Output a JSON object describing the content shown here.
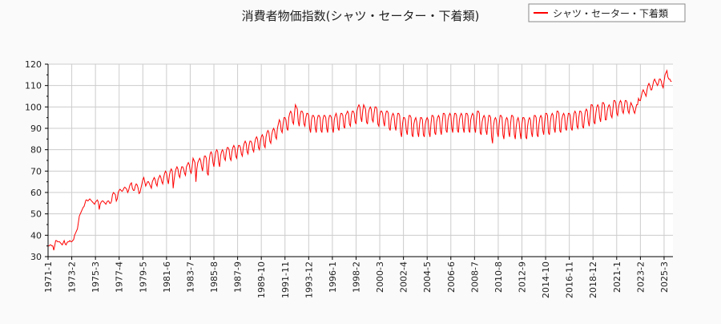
{
  "chart_data": {
    "type": "line",
    "title": "消費者物価指数(シャツ・セーター・下着類)",
    "xlabel": "",
    "ylabel": "",
    "x_range": [
      "1971-1",
      "2025-11"
    ],
    "ylim": [
      30,
      120
    ],
    "yticks": [
      30,
      40,
      50,
      60,
      70,
      80,
      90,
      100,
      110,
      120
    ],
    "xticks": [
      "1971-1",
      "1973-2",
      "1975-3",
      "1977-4",
      "1979-5",
      "1981-6",
      "1983-7",
      "1985-8",
      "1987-9",
      "1989-10",
      "1991-11",
      "1993-12",
      "1996-1",
      "1998-2",
      "2000-3",
      "2002-4",
      "2004-5",
      "2006-6",
      "2008-7",
      "2010-8",
      "2012-9",
      "2014-10",
      "2016-11",
      "2018-12",
      "2021-1",
      "2023-2",
      "2025-3"
    ],
    "grid": true,
    "legend_placement": "top-right",
    "series": [
      {
        "name": "シャツ・セーター・下着類",
        "color": "#ff0000",
        "values": [
          35,
          35,
          35.5,
          35.5,
          35,
          35,
          33,
          35,
          37.5,
          37.5,
          37,
          37,
          37,
          36.5,
          36,
          35.5,
          36.5,
          37.5,
          36,
          35.5,
          36.5,
          37,
          37,
          37.5,
          37,
          37,
          37.5,
          38,
          40,
          41,
          42,
          43,
          46,
          49,
          50,
          51,
          52,
          53,
          53.5,
          55,
          56.5,
          56.5,
          56,
          56.5,
          57,
          56.5,
          56,
          55.5,
          55,
          54.5,
          55.5,
          56,
          56.5,
          55.5,
          52,
          54.5,
          55.5,
          56,
          56,
          55.5,
          55,
          54.5,
          55.5,
          56,
          56,
          55,
          55,
          56,
          59,
          60,
          59.5,
          59,
          56,
          57,
          60,
          61,
          61.5,
          61,
          60.5,
          61,
          62,
          62.5,
          62,
          61.5,
          60,
          61,
          63,
          64,
          64.5,
          62,
          61,
          61,
          63,
          64,
          63.5,
          62,
          59.5,
          60,
          62,
          64,
          66,
          67,
          65,
          63,
          64,
          65,
          65,
          64,
          63,
          62,
          65,
          66,
          67,
          66,
          64,
          63,
          66,
          67,
          68,
          67,
          65,
          64,
          67,
          69,
          70,
          69,
          66,
          64,
          68,
          70,
          71,
          70,
          62,
          66,
          69,
          71,
          72,
          71,
          68,
          67,
          70,
          72,
          72,
          71,
          69,
          68,
          72,
          73,
          74,
          73,
          70,
          69,
          72,
          76,
          75,
          74,
          65,
          71,
          74,
          75,
          76,
          75,
          72,
          70,
          74,
          77,
          77,
          76,
          69,
          68,
          75,
          78,
          79,
          78,
          74,
          72,
          76,
          79,
          80,
          79,
          74,
          72,
          77,
          79,
          80,
          79,
          76,
          75,
          79,
          81,
          81,
          80,
          76,
          75,
          79,
          81,
          82,
          81,
          77,
          76,
          80,
          82,
          82,
          81,
          78,
          77,
          81,
          83,
          84,
          83,
          79,
          78,
          82,
          84,
          84,
          83,
          80,
          79,
          83,
          85,
          86,
          85,
          81,
          80,
          84,
          86,
          87,
          86,
          82,
          81,
          86,
          88,
          89,
          88,
          84,
          83,
          87,
          89,
          90,
          89,
          86,
          85,
          90,
          92,
          94,
          93,
          89,
          88,
          92,
          95,
          95,
          94,
          90,
          89,
          95,
          97,
          98,
          97,
          93,
          92,
          97,
          101,
          100,
          99,
          93,
          91,
          96,
          98,
          98,
          97,
          92,
          91,
          95,
          97,
          97,
          96,
          90,
          88,
          94,
          96,
          96,
          95,
          90,
          88,
          94,
          96,
          96,
          95,
          89,
          88,
          94,
          96,
          96,
          95,
          90,
          88,
          94,
          96,
          96,
          95,
          90,
          88,
          94,
          96,
          97,
          95,
          90,
          89,
          95,
          97,
          97,
          96,
          91,
          90,
          96,
          97,
          98,
          97,
          92,
          91,
          96,
          98,
          98,
          97,
          93,
          92,
          98,
          100,
          101,
          100,
          95,
          93,
          98,
          101,
          100,
          99,
          93,
          92,
          97,
          99,
          100,
          99,
          94,
          93,
          97,
          100,
          100,
          99,
          92,
          91,
          96,
          98,
          98,
          97,
          93,
          91,
          96,
          98,
          98,
          97,
          90,
          89,
          94,
          96,
          97,
          96,
          91,
          89,
          94,
          97,
          97,
          96,
          88,
          86,
          92,
          95,
          95,
          94,
          89,
          87,
          93,
          96,
          96,
          95,
          87,
          86,
          92,
          94,
          95,
          93,
          88,
          86,
          92,
          95,
          95,
          94,
          87,
          86,
          92,
          94,
          95,
          94,
          88,
          86,
          92,
          96,
          96,
          95,
          88,
          87,
          93,
          95,
          96,
          95,
          89,
          87,
          93,
          97,
          97,
          96,
          89,
          88,
          94,
          96,
          97,
          96,
          90,
          88,
          94,
          97,
          97,
          96,
          89,
          88,
          94,
          96,
          97,
          96,
          90,
          88,
          94,
          97,
          97,
          96,
          89,
          88,
          94,
          96,
          97,
          96,
          90,
          88,
          94,
          98,
          98,
          97,
          88,
          87,
          93,
          95,
          96,
          95,
          89,
          87,
          92,
          96,
          96,
          95,
          86,
          83,
          91,
          94,
          95,
          94,
          88,
          86,
          92,
          96,
          96,
          95,
          87,
          85,
          91,
          94,
          95,
          94,
          88,
          86,
          92,
          96,
          96,
          95,
          87,
          85,
          91,
          94,
          95,
          93,
          88,
          85,
          92,
          95,
          95,
          94,
          86,
          85,
          91,
          94,
          95,
          94,
          88,
          86,
          92,
          96,
          96,
          95,
          87,
          86,
          92,
          95,
          96,
          95,
          89,
          87,
          93,
          97,
          97,
          96,
          88,
          87,
          93,
          96,
          97,
          96,
          90,
          88,
          94,
          98,
          98,
          97,
          89,
          88,
          94,
          96,
          97,
          96,
          90,
          89,
          94,
          97,
          97,
          96,
          90,
          89,
          94,
          97,
          98,
          97,
          91,
          90,
          95,
          98,
          98,
          97,
          91,
          90,
          95,
          98,
          99,
          98,
          93,
          91,
          96,
          101,
          101,
          100,
          93,
          92,
          97,
          100,
          101,
          100,
          95,
          93,
          98,
          102,
          102,
          101,
          94,
          94,
          98,
          100,
          101,
          100,
          96,
          95,
          99,
          103,
          103,
          102,
          97,
          96,
          100,
          102,
          103,
          102,
          98,
          97,
          100,
          103,
          103,
          102,
          98,
          97,
          100,
          102,
          101,
          100,
          98,
          97,
          99,
          101,
          101,
          104,
          103,
          103,
          105,
          107,
          108,
          107,
          106,
          105,
          108,
          110,
          111,
          110,
          108,
          108,
          110,
          112,
          113,
          112,
          111,
          110,
          111,
          113,
          113,
          112,
          110,
          109,
          112,
          115,
          116,
          117,
          114,
          113,
          113,
          112,
          112
        ]
      }
    ]
  }
}
